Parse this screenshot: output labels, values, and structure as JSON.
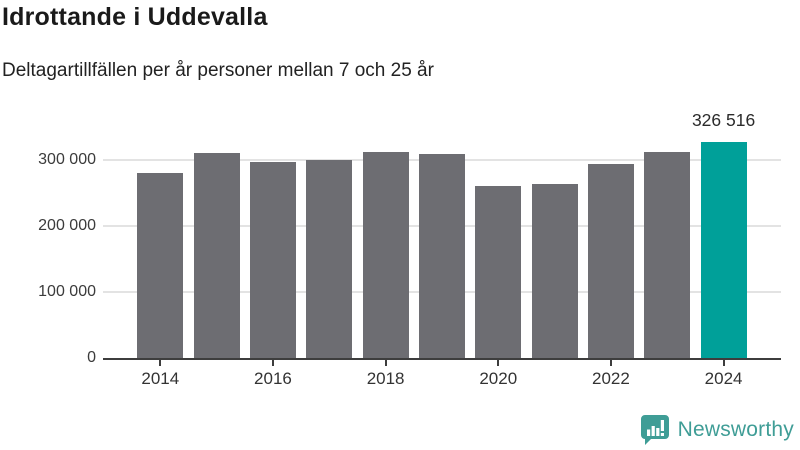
{
  "header": {
    "title": "Idrottande i Uddevalla",
    "subtitle": "Deltagartillfällen per år personer mellan 7 och 25 år"
  },
  "chart_data": {
    "type": "bar",
    "title": "Idrottande i Uddevalla",
    "subtitle": "Deltagartillfällen per år personer mellan 7 och 25 år",
    "categories": [
      "2014",
      "2015",
      "2016",
      "2017",
      "2018",
      "2019",
      "2020",
      "2021",
      "2022",
      "2023",
      "2024"
    ],
    "values": [
      280000,
      310000,
      297000,
      300000,
      312000,
      309000,
      261000,
      264000,
      294000,
      312000,
      326516
    ],
    "xlabel": "",
    "ylabel": "",
    "ylim": [
      0,
      335000
    ],
    "yticks": [
      0,
      100000,
      200000,
      300000
    ],
    "ytick_labels": [
      "0",
      "100 000",
      "200 000",
      "300 000"
    ],
    "xtick_labels": [
      "2014",
      "2016",
      "2018",
      "2020",
      "2022",
      "2024"
    ],
    "grid": true,
    "legend_position": "none",
    "highlight_index": 10,
    "data_label": {
      "index": 10,
      "text": "326 516"
    },
    "colors": {
      "bar": "#6d6d72",
      "highlight": "#00a099",
      "gridline": "#e3e3e3",
      "axis": "#3d3d3d"
    }
  },
  "footer": {
    "brand": "Newsworthy",
    "logo_icon": "bar-chart-speech-bubble-icon",
    "brand_color": "#3f9d96"
  }
}
